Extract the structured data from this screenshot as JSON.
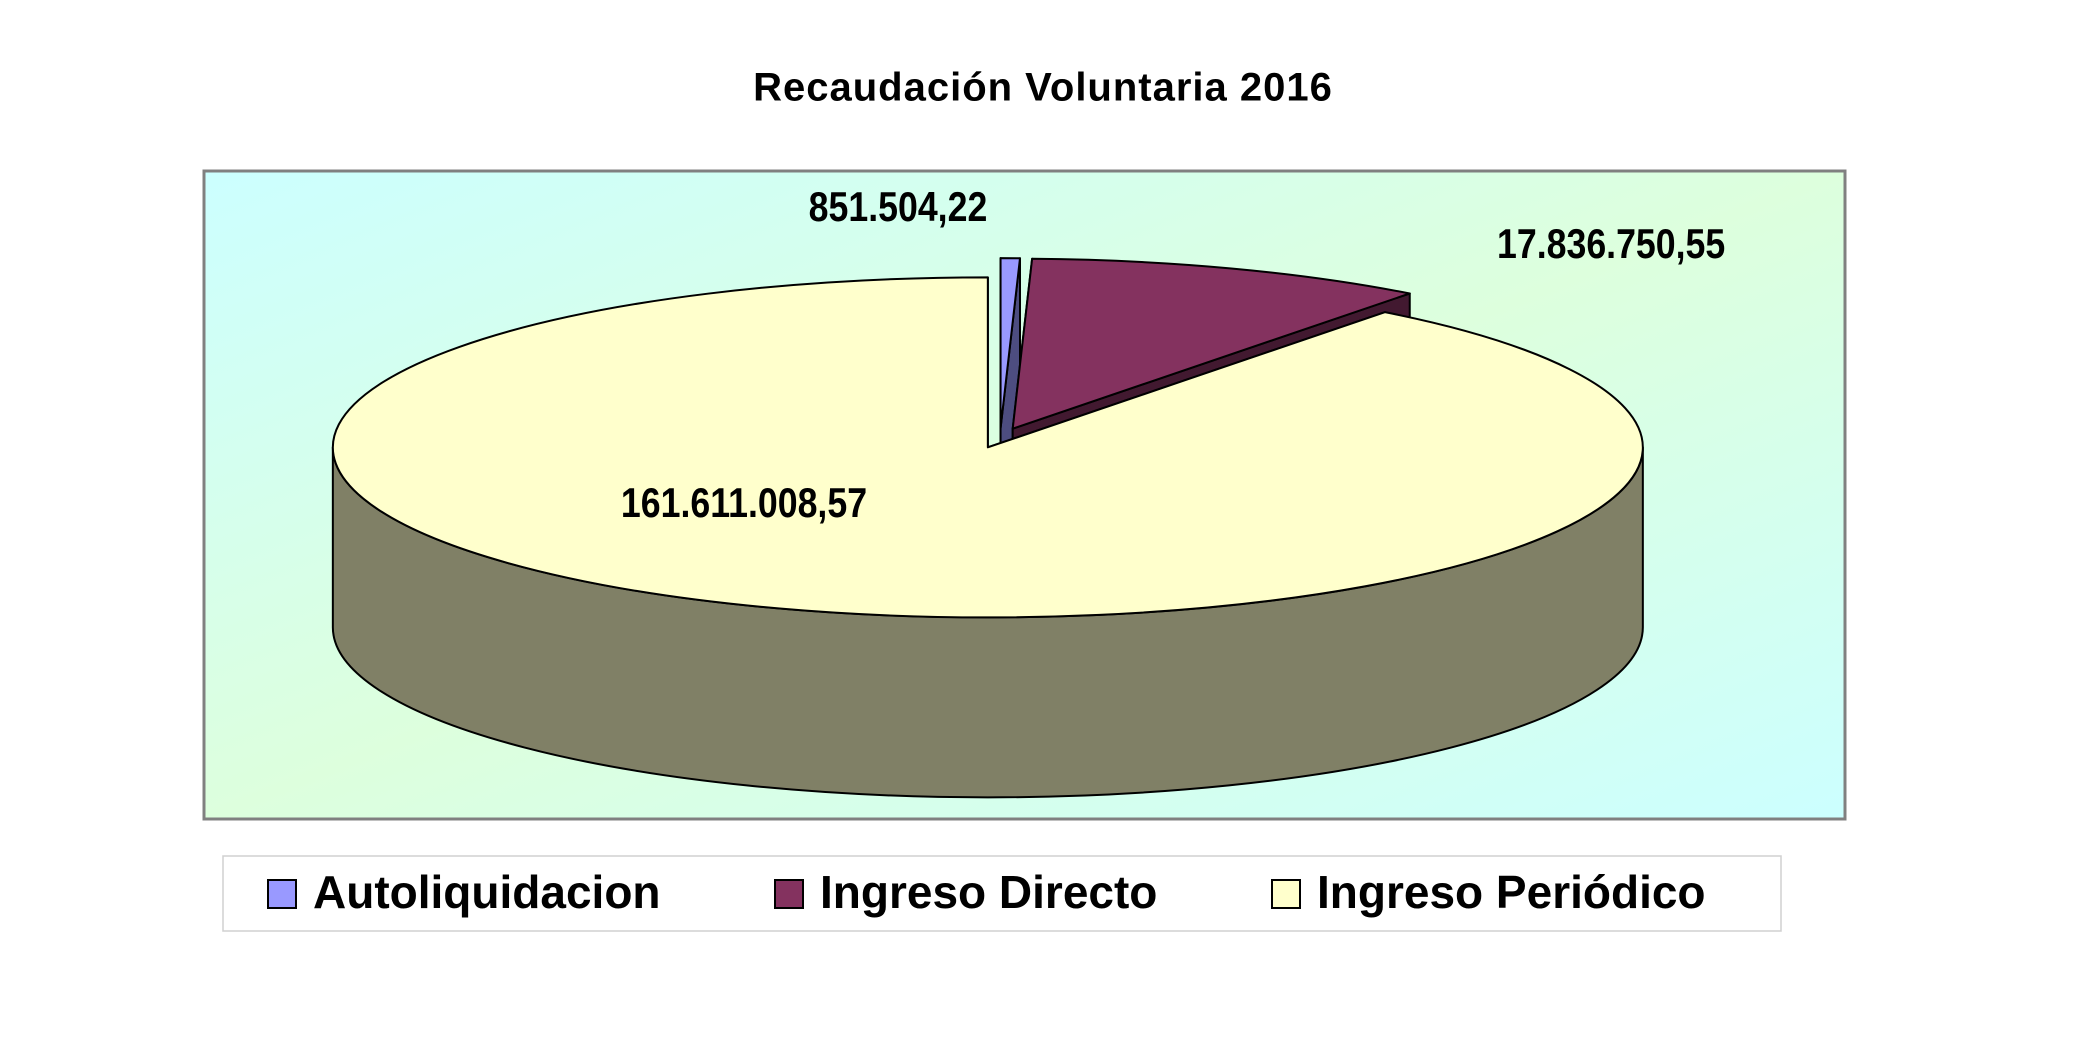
{
  "chart_data": {
    "type": "pie",
    "title": "Recaudación Voluntaria 2016",
    "categories": [
      "Autoliquidacion",
      "Ingreso Directo",
      "Ingreso Periódico"
    ],
    "values": [
      851504.22,
      17836750.55,
      161611008.57
    ],
    "value_labels": [
      "851.504,22",
      "17.836.750,55",
      "161.611.008,57"
    ],
    "colors": [
      "#9999ff",
      "#84325f",
      "#ffffcc"
    ],
    "legend": "bottom"
  }
}
